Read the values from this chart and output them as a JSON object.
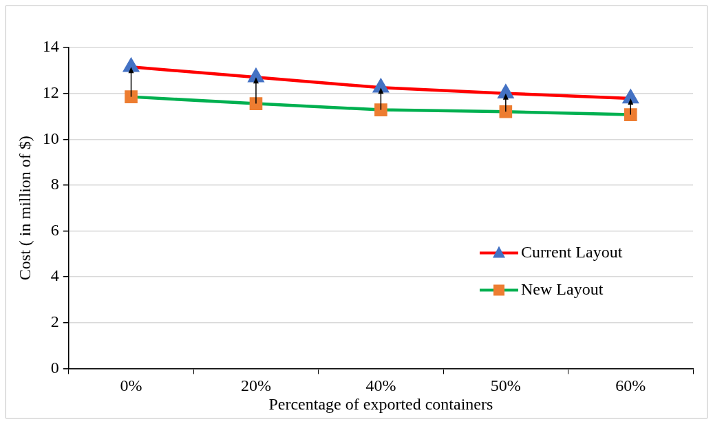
{
  "chart_data": {
    "type": "line",
    "xlabel": "Percentage of exported containers",
    "ylabel": "Cost ( in million of $)",
    "categories": [
      "0%",
      "20%",
      "40%",
      "50%",
      "60%"
    ],
    "series": [
      {
        "name": "Current Layout",
        "color": "#ff0000",
        "colors": [
          "#4472c4",
          "#4472c4",
          "#4472c4",
          "#4472c4",
          "#4472c4"
        ],
        "marker": "triangle",
        "values": [
          13.15,
          12.7,
          12.25,
          12.0,
          11.78
        ]
      },
      {
        "name": "New Layout",
        "color": "#00b050",
        "colors": [
          "#ed7d31",
          "#ed7d31",
          "#ed7d31",
          "#ed7d31",
          "#ed7d31"
        ],
        "marker": "square",
        "values": [
          11.85,
          11.55,
          11.28,
          11.2,
          11.07
        ]
      }
    ],
    "ylim": [
      0,
      14
    ],
    "yticks": [
      0,
      2,
      4,
      6,
      8,
      10,
      12,
      14
    ],
    "grid": "y",
    "legend": "right"
  }
}
